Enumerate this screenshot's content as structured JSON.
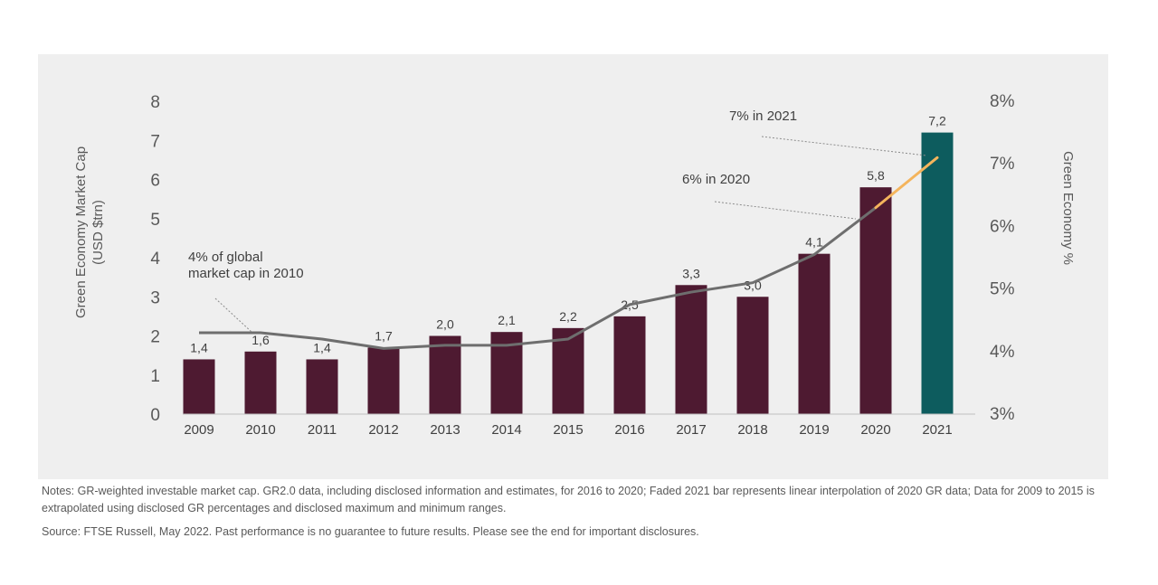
{
  "chart_data": {
    "type": "bar",
    "categories": [
      "2009",
      "2010",
      "2011",
      "2012",
      "2013",
      "2014",
      "2015",
      "2016",
      "2017",
      "2018",
      "2019",
      "2020",
      "2021"
    ],
    "series": [
      {
        "kind": "bar",
        "axis": "left",
        "values": [
          1.4,
          1.6,
          1.4,
          1.7,
          2.0,
          2.1,
          2.2,
          2.5,
          3.3,
          3.0,
          4.1,
          5.8,
          7.2
        ],
        "labels": [
          "1,4",
          "1,6",
          "1,4",
          "1,7",
          "2,0",
          "2,1",
          "2,2",
          "2,5",
          "3,3",
          "3,0",
          "4,1",
          "5,8",
          "7,2"
        ],
        "color": "#4e1a31",
        "highlight_color": "#0d5c5e"
      },
      {
        "kind": "line",
        "axis": "right",
        "values": [
          4.3,
          4.3,
          4.2,
          4.05,
          4.1,
          4.1,
          4.2,
          4.75,
          4.95,
          5.1,
          5.55,
          6.3,
          7.1
        ],
        "color": "#6e6e6e",
        "highlight_color": "#f4b45c"
      }
    ],
    "ylabel": "Green Economy Market Cap\n(USD $trn)",
    "y2label": "Green Economy %",
    "ylim": [
      0,
      8
    ],
    "yticks": [
      "0",
      "1",
      "2",
      "3",
      "4",
      "5",
      "6",
      "7",
      "8"
    ],
    "y2lim": [
      3,
      8
    ],
    "y2ticks": [
      "3%",
      "4%",
      "5%",
      "6%",
      "7%",
      "8%"
    ],
    "annotations": [
      {
        "text": "4% of global\nmarket cap in 2010"
      },
      {
        "text": "6% in 2020"
      },
      {
        "text": "7% in 2021"
      }
    ],
    "grid": false
  },
  "footer": {
    "notes": "Notes: GR-weighted investable market cap. GR2.0 data, including disclosed information and estimates, for 2016 to 2020; Faded 2021 bar represents linear interpolation of 2020 GR data; Data for 2009 to 2015 is extrapolated using disclosed GR percentages and disclosed maximum and minimum ranges.",
    "source": "Source: FTSE Russell, May 2022. Past performance is no guarantee to future results. Please see the end for important disclosures."
  }
}
